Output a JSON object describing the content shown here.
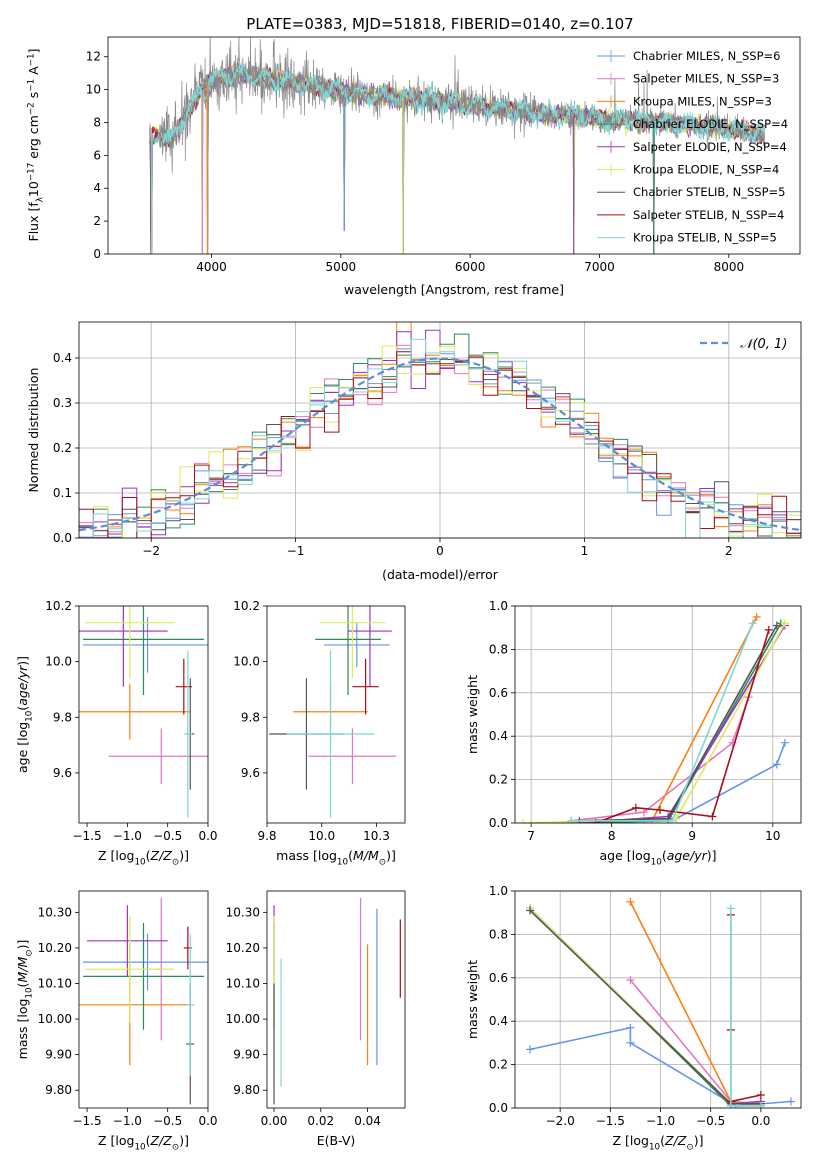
{
  "figure_title": "PLATE=0383, MJD=51818, FIBERID=0140, z=0.107",
  "model_colors": [
    "#6495ED",
    "#E377C2",
    "#FF7F0E",
    "#2E8B57",
    "#9932CC",
    "#DFEA57",
    "#555555",
    "#A50F15",
    "#7FD6D6"
  ],
  "chart_data": [
    {
      "type": "line",
      "panel": "spectrum",
      "xlabel": "wavelength [Angstrom, rest frame]",
      "ylabel": "Flux [f_λ10^-17 erg cm^-2 s^-1 A^-1]",
      "xlim": [
        3200,
        8550
      ],
      "ylim": [
        0,
        13.2
      ],
      "xticks": [
        4000,
        5000,
        6000,
        7000,
        8000
      ],
      "yticks": [
        0,
        2,
        4,
        6,
        8,
        10,
        12
      ],
      "legend": "top-right",
      "legend_entries": [
        "Chabrier MILES, N_SSP=6",
        "Salpeter MILES, N_SSP=3",
        "Kroupa MILES, N_SSP=3",
        "Chabrier ELODIE, N_SSP=4",
        "Salpeter ELODIE, N_SSP=4",
        "Kroupa ELODIE, N_SSP=4",
        "Chabrier STELIB, N_SSP=5",
        "Salpeter STELIB, N_SSP=4",
        "Kroupa STELIB, N_SSP=5"
      ],
      "data_trend": {
        "x": [
          3600,
          3700,
          3800,
          3900,
          4000,
          4200,
          4400,
          4600,
          4800,
          5000,
          5200,
          5500,
          6000,
          6500,
          7000,
          7500,
          8000,
          8280
        ],
        "y": [
          7.1,
          7.0,
          8.4,
          9.7,
          10.6,
          11.0,
          10.7,
          10.5,
          10.2,
          9.9,
          9.7,
          9.5,
          9.1,
          8.6,
          8.2,
          8.0,
          7.6,
          7.3
        ]
      },
      "dips": [
        {
          "x": 3535,
          "y": 0
        },
        {
          "x": 3930,
          "y": 0
        },
        {
          "x": 3968,
          "y": 0
        },
        {
          "x": 5028,
          "y": 1.4
        },
        {
          "x": 5480,
          "y": 0
        },
        {
          "x": 6800,
          "y": 0
        },
        {
          "x": 7420,
          "y": 0
        }
      ]
    },
    {
      "type": "histogram",
      "panel": "residuals",
      "xlabel": "(data-model)/error",
      "ylabel": "Normed distribution",
      "xlim": [
        -2.5,
        2.5
      ],
      "ylim": [
        0,
        0.48
      ],
      "xticks": [
        -2,
        -1,
        0,
        1,
        2
      ],
      "yticks": [
        0,
        0.1,
        0.2,
        0.3,
        0.4
      ],
      "grid": true,
      "bin_width": 0.1,
      "reference_curve": "N(0,1)",
      "legend_entries": [
        "𝒩(0, 1)"
      ],
      "legend": "top-right"
    },
    {
      "type": "scatter",
      "panel": "age-vs-Z",
      "xlabel": "Z [log10(Z/Z☉)]",
      "ylabel": "age [log10(age/yr)]",
      "xlim": [
        -1.6,
        0.0
      ],
      "ylim": [
        9.42,
        10.2
      ],
      "xticks": [
        -1.5,
        -1.0,
        -0.5,
        0.0
      ],
      "yticks": [
        9.6,
        9.8,
        10.0,
        10.2
      ],
      "points": [
        {
          "model": 0,
          "x": -0.75,
          "xerr": 0.8,
          "y": 10.06,
          "yerr": 0.1
        },
        {
          "model": 1,
          "x": -0.58,
          "xerr": 0.65,
          "y": 9.66,
          "yerr": 0.1
        },
        {
          "model": 2,
          "x": -0.97,
          "xerr": 0.75,
          "y": 9.82,
          "yerr": 0.1
        },
        {
          "model": 3,
          "x": -0.8,
          "xerr": 0.75,
          "y": 10.08,
          "yerr": 0.2
        },
        {
          "model": 4,
          "x": -1.05,
          "xerr": 0.55,
          "y": 10.11,
          "yerr": 0.2
        },
        {
          "model": 5,
          "x": -0.97,
          "xerr": 0.55,
          "y": 10.14,
          "yerr": 0.2
        },
        {
          "model": 6,
          "x": -0.22,
          "xerr": 0.05,
          "y": 9.74,
          "yerr": 0.2
        },
        {
          "model": 7,
          "x": -0.3,
          "xerr": 0.1,
          "y": 9.91,
          "yerr": 0.1
        },
        {
          "model": 8,
          "x": -0.25,
          "xerr": 0.05,
          "y": 9.74,
          "yerr": 0.3
        }
      ]
    },
    {
      "type": "scatter",
      "panel": "age-vs-mass",
      "xlabel": "mass [log10(M/M☉)]",
      "ylabel": "",
      "xlim": [
        9.75,
        10.38
      ],
      "ylim": [
        9.42,
        10.2
      ],
      "xticks": [
        9.75,
        10.0,
        10.25
      ],
      "yticks": [
        9.6,
        9.8,
        10.0,
        10.2
      ],
      "points": [
        {
          "model": 0,
          "x": 10.16,
          "xerr": 0.15,
          "y": 10.06,
          "yerr": 0.08
        },
        {
          "model": 1,
          "x": 10.14,
          "xerr": 0.2,
          "y": 9.66,
          "yerr": 0.1
        },
        {
          "model": 2,
          "x": 10.04,
          "xerr": 0.17,
          "y": 9.82,
          "yerr": 0.1
        },
        {
          "model": 3,
          "x": 10.12,
          "xerr": 0.15,
          "y": 10.08,
          "yerr": 0.2
        },
        {
          "model": 4,
          "x": 10.22,
          "xerr": 0.1,
          "y": 10.11,
          "yerr": 0.2
        },
        {
          "model": 5,
          "x": 10.14,
          "xerr": 0.15,
          "y": 10.14,
          "yerr": 0.2
        },
        {
          "model": 6,
          "x": 9.93,
          "xerr": 0.17,
          "y": 9.74,
          "yerr": 0.2
        },
        {
          "model": 7,
          "x": 10.2,
          "xerr": 0.06,
          "y": 9.91,
          "yerr": 0.1
        },
        {
          "model": 8,
          "x": 10.04,
          "xerr": 0.2,
          "y": 9.74,
          "yerr": 0.3
        }
      ]
    },
    {
      "type": "line",
      "panel": "mass-weight-vs-age",
      "xlabel": "age [log10(age/yr)]",
      "ylabel": "mass weight",
      "xlim": [
        6.8,
        10.35
      ],
      "ylim": [
        0,
        1.0
      ],
      "xticks": [
        7,
        8,
        9,
        10
      ],
      "yticks": [
        0.0,
        0.2,
        0.4,
        0.6,
        0.8,
        1.0
      ],
      "grid": true,
      "series": [
        {
          "model": 0,
          "x": [
            7.6,
            8.4,
            8.8,
            10.05,
            10.15
          ],
          "y": [
            0.0,
            0.01,
            0.02,
            0.27,
            0.37
          ]
        },
        {
          "model": 1,
          "x": [
            7.5,
            8.4,
            9.5,
            9.7
          ],
          "y": [
            0.01,
            0.05,
            0.37,
            0.58
          ]
        },
        {
          "model": 2,
          "x": [
            7.5,
            8.5,
            9.8
          ],
          "y": [
            0.01,
            0.01,
            0.95
          ]
        },
        {
          "model": 3,
          "x": [
            7.5,
            8.7,
            10.1
          ],
          "y": [
            0.0,
            0.01,
            0.92
          ]
        },
        {
          "model": 4,
          "x": [
            7.6,
            8.7,
            10.15
          ],
          "y": [
            0.0,
            0.03,
            0.91
          ]
        },
        {
          "model": 5,
          "x": [
            6.9,
            8.8,
            10.15
          ],
          "y": [
            0.0,
            0.02,
            0.92
          ]
        },
        {
          "model": 6,
          "x": [
            7.6,
            8.7,
            10.05
          ],
          "y": [
            0.01,
            0.02,
            0.91
          ]
        },
        {
          "model": 7,
          "x": [
            7.8,
            8.3,
            8.6,
            9.25,
            9.95
          ],
          "y": [
            0.0,
            0.07,
            0.06,
            0.03,
            0.89
          ]
        },
        {
          "model": 8,
          "x": [
            7.5,
            8.75,
            9.75
          ],
          "y": [
            0.01,
            0.01,
            0.92
          ]
        }
      ]
    },
    {
      "type": "scatter",
      "panel": "mass-vs-Z",
      "xlabel": "Z [log10(Z/Z☉)]",
      "ylabel": "mass [log10(M/M☉)]",
      "xlim": [
        -1.6,
        0.0
      ],
      "ylim": [
        9.75,
        10.36
      ],
      "xticks": [
        -1.5,
        -1.0,
        -0.5,
        0.0
      ],
      "yticks": [
        9.8,
        9.9,
        10.0,
        10.1,
        10.2,
        10.3
      ],
      "points": [
        {
          "model": 0,
          "x": -0.75,
          "xerr": 0.8,
          "y": 10.16,
          "yerr": 0.08
        },
        {
          "model": 1,
          "x": -0.58,
          "xerr": 0.05,
          "y": 10.14,
          "yerr": 0.2
        },
        {
          "model": 2,
          "x": -0.97,
          "xerr": 0.75,
          "y": 10.04,
          "yerr": 0.17
        },
        {
          "model": 3,
          "x": -0.8,
          "xerr": 0.75,
          "y": 10.12,
          "yerr": 0.15
        },
        {
          "model": 4,
          "x": -1.0,
          "xerr": 0.5,
          "y": 10.22,
          "yerr": 0.1
        },
        {
          "model": 5,
          "x": -0.97,
          "xerr": 0.55,
          "y": 10.14,
          "yerr": 0.15
        },
        {
          "model": 6,
          "x": -0.22,
          "xerr": 0.05,
          "y": 9.93,
          "yerr": 0.17
        },
        {
          "model": 7,
          "x": -0.25,
          "xerr": 0.05,
          "y": 10.2,
          "yerr": 0.06
        },
        {
          "model": 8,
          "x": -0.22,
          "xerr": 0.05,
          "y": 10.04,
          "yerr": 0.2
        }
      ]
    },
    {
      "type": "scatter",
      "panel": "mass-vs-EBV",
      "xlabel": "E(B-V)",
      "ylabel": "",
      "xlim": [
        -0.003,
        0.056
      ],
      "ylim": [
        9.75,
        10.36
      ],
      "xticks": [
        0.0,
        0.02,
        0.04
      ],
      "yticks": [
        9.8,
        9.9,
        10.0,
        10.1,
        10.2,
        10.3
      ],
      "points": [
        {
          "model": 0,
          "x": 0.044,
          "y": 10.09,
          "yerr": 0.22
        },
        {
          "model": 1,
          "x": 0.037,
          "y": 10.14,
          "yerr": 0.2
        },
        {
          "model": 2,
          "x": 0.04,
          "y": 10.04,
          "yerr": 0.17
        },
        {
          "model": 3,
          "x": 0.0,
          "y": 10.12,
          "yerr": 0.15
        },
        {
          "model": 4,
          "x": 0.0,
          "y": 10.22,
          "yerr": 0.1
        },
        {
          "model": 5,
          "x": 0.0,
          "y": 10.14,
          "yerr": 0.15
        },
        {
          "model": 6,
          "x": 0.0,
          "y": 9.93,
          "yerr": 0.17
        },
        {
          "model": 7,
          "x": 0.054,
          "y": 10.17,
          "yerr": 0.11
        },
        {
          "model": 8,
          "x": 0.003,
          "y": 9.99,
          "yerr": 0.18
        }
      ]
    },
    {
      "type": "line",
      "panel": "mass-weight-vs-Z",
      "xlabel": "Z [log10(Z/Z☉)]",
      "ylabel": "mass weight",
      "xlim": [
        -2.45,
        0.4
      ],
      "ylim": [
        0,
        1.0
      ],
      "xticks": [
        -2.0,
        -1.5,
        -1.0,
        -0.5,
        0.0
      ],
      "yticks": [
        0.0,
        0.2,
        0.4,
        0.6,
        0.8,
        1.0
      ],
      "grid": true,
      "series": [
        {
          "model": 0,
          "x": [
            -2.3,
            -1.3,
            -1.3,
            -0.25,
            0.3
          ],
          "y": [
            0.27,
            0.37,
            0.3,
            0.01,
            0.03
          ]
        },
        {
          "model": 1,
          "x": [
            -1.3,
            -0.3,
            0.0
          ],
          "y": [
            0.59,
            0.03,
            0.02
          ]
        },
        {
          "model": 2,
          "x": [
            -1.3,
            -0.3,
            0.0
          ],
          "y": [
            0.95,
            0.03,
            0.01
          ]
        },
        {
          "model": 3,
          "x": [
            -2.3,
            -0.3,
            0.0
          ],
          "y": [
            0.92,
            0.01,
            0.01
          ]
        },
        {
          "model": 4,
          "x": [
            -2.3,
            -0.3,
            0.0
          ],
          "y": [
            0.92,
            0.02,
            0.03
          ]
        },
        {
          "model": 5,
          "x": [
            -2.3,
            -0.3,
            0.0
          ],
          "y": [
            0.92,
            0.02,
            0.02
          ]
        },
        {
          "model": 6,
          "x": [
            -2.3,
            -0.3,
            0.0
          ],
          "y": [
            0.91,
            0.02,
            0.02
          ]
        },
        {
          "model": 7,
          "x": [
            -0.3,
            -0.3,
            -0.3,
            0.0
          ],
          "y": [
            0.89,
            0.36,
            0.03,
            0.06
          ]
        },
        {
          "model": 8,
          "x": [
            -0.3,
            -0.3,
            0.0
          ],
          "y": [
            0.92,
            0.01,
            0.01
          ]
        }
      ]
    }
  ]
}
